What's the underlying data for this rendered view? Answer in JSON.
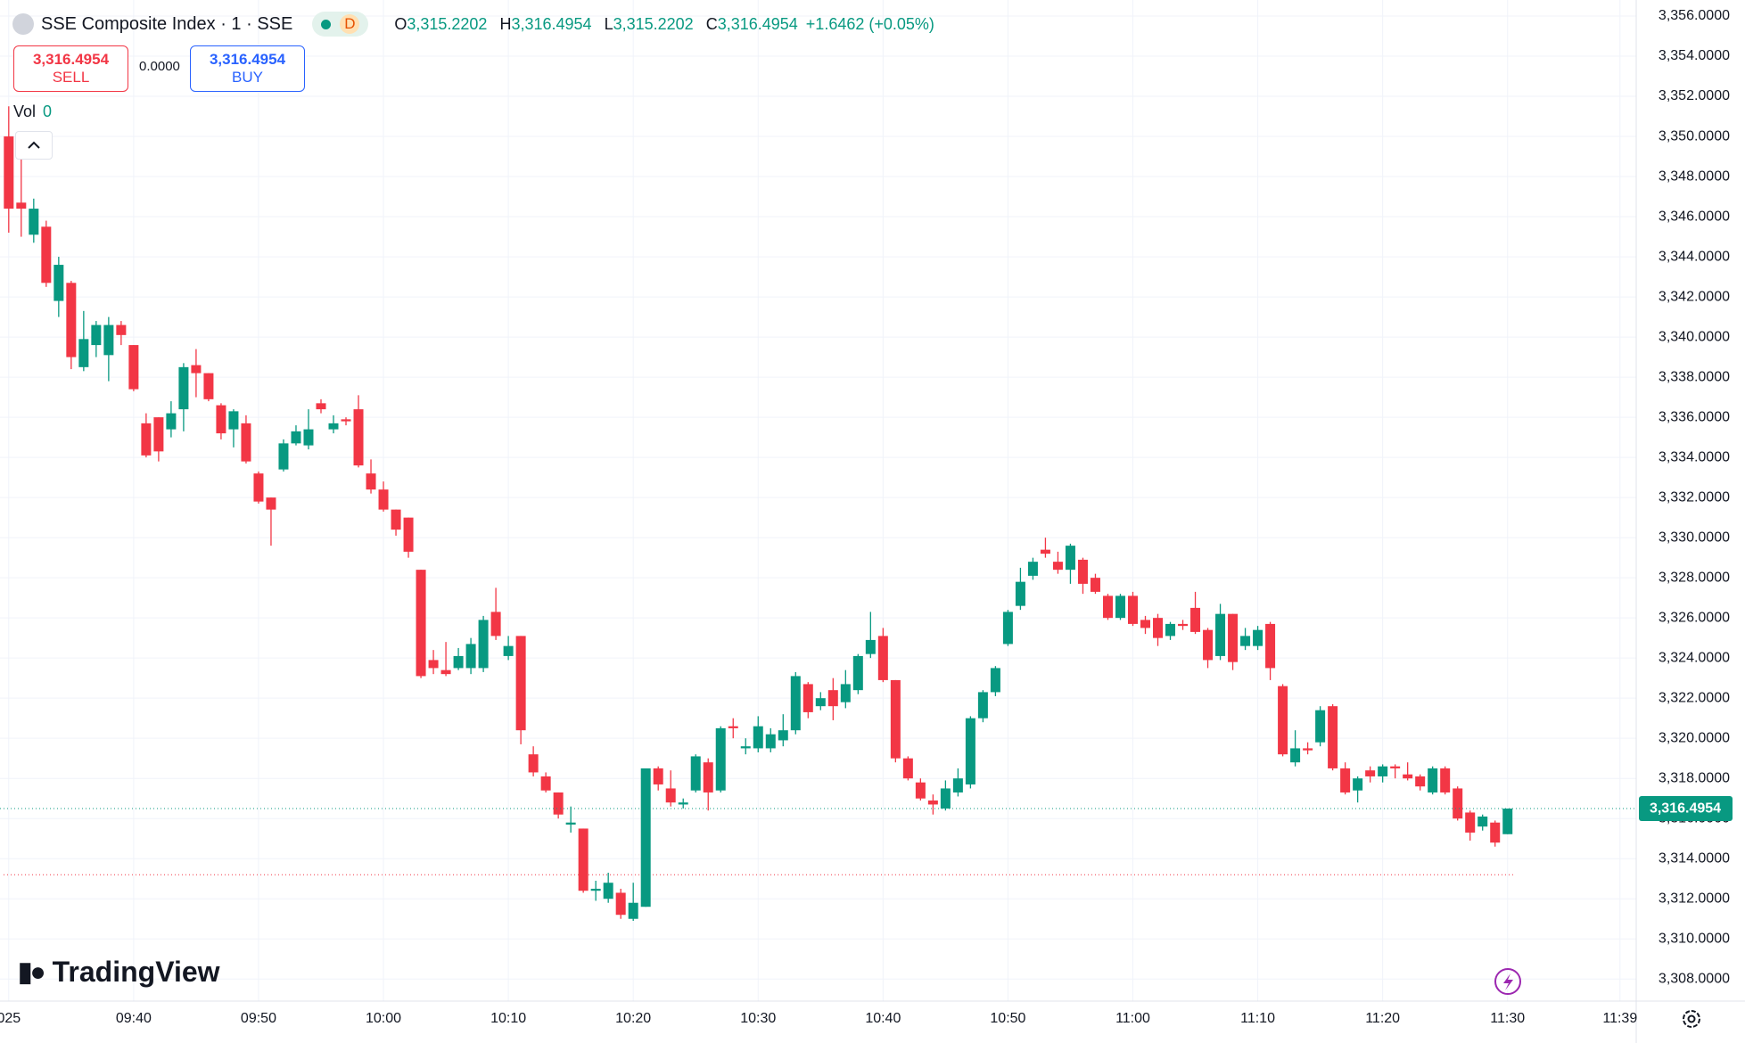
{
  "header": {
    "symbol": "SSE Composite Index · 1 · SSE",
    "badge": "D",
    "ohlc": [
      {
        "key": "O",
        "value": "3,315.2202"
      },
      {
        "key": "H",
        "value": "3,316.4954"
      },
      {
        "key": "L",
        "value": "3,315.2202"
      },
      {
        "key": "C",
        "value": "3,316.4954"
      }
    ],
    "change": "+1.6462 (+0.05%)",
    "sell_price": "3,316.4954",
    "sell": "SELL",
    "spread": "0.0000",
    "buy_price": "3,316.4954",
    "buy": "BUY",
    "volume_label": "Vol",
    "volume": "0",
    "brand": "TradingView"
  },
  "chart_data": {
    "type": "candlestick",
    "up_color": "#089981",
    "down_color": "#f23645",
    "grid": true,
    "open": [
      3350,
      3346.7,
      3345.1,
      3345.5,
      3341.8,
      3342.7,
      3338.5,
      3339.6,
      3339.1,
      3340.6,
      3339.6,
      3335.7,
      3336,
      3335.4,
      3336.4,
      3338.6,
      3338.2,
      3336.6,
      3335.4,
      3335.7,
      3333.2,
      3332,
      3333.4,
      3334.7,
      3334.6,
      3336.7,
      3335.4,
      3335.9,
      3336.4,
      3333.2,
      3332.4,
      3331.4,
      3331,
      3328.4,
      3323.9,
      3323.4,
      3323.5,
      3323.5,
      3323.5,
      3326.3,
      3324.1,
      3325.1,
      3319.2,
      3318.1,
      3317.3,
      3315.7,
      3315.5,
      3312.4,
      3312,
      3312.3,
      3311,
      3311.6,
      3318.5,
      3317.5,
      3316.7,
      3317.4,
      3318.8,
      3317.4,
      3320.6,
      3319.5,
      3319.5,
      3319.5,
      3319.9,
      3320.4,
      3322.7,
      3321.6,
      3322.4,
      3321.8,
      3322.4,
      3324.2,
      3325.1,
      3322.9,
      3319,
      3317.8,
      3316.9,
      3316.5,
      3317.3,
      3317.7,
      3321,
      3322.3,
      3324.7,
      3326.6,
      3328.1,
      3329.4,
      3328.8,
      3328.4,
      3328.9,
      3328,
      3327.1,
      3326,
      3327.1,
      3325.9,
      3326,
      3325.1,
      3325.7,
      3326.5,
      3325.4,
      3324.1,
      3326.2,
      3324.6,
      3324.6,
      3325.7,
      3322.6,
      3318.8,
      3319.5,
      3319.8,
      3321.6,
      3318.5,
      3317.4,
      3318.4,
      3318.1,
      3318.6,
      3318.2,
      3318.1,
      3317.3,
      3318.5,
      3317.5,
      3316.3,
      3315.6,
      3315.8,
      3315.2202
    ],
    "high": [
      3351.5,
      3349,
      3346.9,
      3345.8,
      3344,
      3342.8,
      3341.3,
      3340.8,
      3341,
      3340.8,
      3339.6,
      3336.2,
      3336,
      3336.8,
      3338.7,
      3339.4,
      3338.2,
      3336.7,
      3336.4,
      3336.1,
      3333.3,
      3332,
      3334.9,
      3335.6,
      3336.4,
      3336.9,
      3336.1,
      3336,
      3337.1,
      3333.9,
      3332.8,
      3331.4,
      3331,
      3328.4,
      3324.4,
      3324.8,
      3324.5,
      3325,
      3326.1,
      3327.5,
      3325.1,
      3325.1,
      3319.6,
      3318.3,
      3317.3,
      3316.6,
      3315.5,
      3312.9,
      3313.3,
      3312.5,
      3312.8,
      3318.5,
      3318.6,
      3318.4,
      3317,
      3319.2,
      3319,
      3320.6,
      3321,
      3320,
      3321.1,
      3320.5,
      3321.2,
      3323.3,
      3322.8,
      3322.3,
      3323,
      3323.4,
      3324.2,
      3326.3,
      3325.5,
      3322.9,
      3319.1,
      3318,
      3317.2,
      3317.9,
      3318.5,
      3321.1,
      3322.4,
      3323.6,
      3326.4,
      3328.5,
      3329,
      3330,
      3329.3,
      3329.7,
      3329,
      3328.2,
      3327.2,
      3327.2,
      3327.3,
      3326.1,
      3326.2,
      3325.8,
      3325.9,
      3327.3,
      3325.5,
      3326.7,
      3326.2,
      3325.5,
      3325.6,
      3325.8,
      3322.7,
      3320.4,
      3319.8,
      3321.6,
      3321.7,
      3318.8,
      3318.1,
      3318.6,
      3318.7,
      3318.7,
      3318.8,
      3318.2,
      3318.6,
      3318.6,
      3317.6,
      3316.4,
      3316.2,
      3315.9,
      3316.4954
    ],
    "low": [
      3345.2,
      3345,
      3344.7,
      3342.5,
      3341,
      3338.4,
      3338.3,
      3339,
      3337.8,
      3339.6,
      3337.3,
      3334,
      3333.8,
      3335,
      3335.3,
      3337,
      3336.8,
      3334.9,
      3334.5,
      3333.7,
      3331.7,
      3329.6,
      3333.3,
      3334.6,
      3334.4,
      3336.2,
      3335.2,
      3335.6,
      3333.5,
      3332.2,
      3331.3,
      3330.1,
      3329,
      3323,
      3323.2,
      3323.1,
      3323.4,
      3323.2,
      3323.3,
      3324.9,
      3323.9,
      3319.7,
      3318.1,
      3317.3,
      3316,
      3315.3,
      3312.3,
      3311.9,
      3311.8,
      3311,
      3310.9,
      3311.6,
      3317.4,
      3316.6,
      3316.5,
      3317.3,
      3316.4,
      3317.3,
      3320,
      3319.2,
      3319.3,
      3319.3,
      3319.6,
      3320.2,
      3321,
      3321.4,
      3320.9,
      3321.5,
      3322.2,
      3324,
      3322.8,
      3318.8,
      3317.9,
      3316.9,
      3316.2,
      3316.4,
      3317.1,
      3317.5,
      3320.8,
      3322.1,
      3324.6,
      3326.4,
      3327.9,
      3329,
      3328.2,
      3327.7,
      3327.2,
      3327.2,
      3325.9,
      3325.9,
      3325.6,
      3325.2,
      3324.6,
      3324.9,
      3325.4,
      3325.2,
      3323.5,
      3323.9,
      3323.4,
      3324.4,
      3324.4,
      3322.9,
      3319.1,
      3318.6,
      3319.2,
      3319.6,
      3318.4,
      3317.2,
      3316.8,
      3317.8,
      3317.8,
      3318,
      3317.9,
      3317.4,
      3317.2,
      3317.2,
      3315.9,
      3314.9,
      3315.4,
      3314.6,
      3315.2202
    ],
    "close": [
      3346.4,
      3346.4,
      3346.4,
      3342.7,
      3343.6,
      3339,
      3339.9,
      3340.6,
      3340.6,
      3340.1,
      3337.4,
      3334.1,
      3334.3,
      3336.2,
      3338.5,
      3338.2,
      3336.9,
      3335.2,
      3336.3,
      3333.8,
      3331.8,
      3331.4,
      3334.7,
      3335.3,
      3335.4,
      3336.4,
      3335.7,
      3335.8,
      3333.6,
      3332.4,
      3331.4,
      3330.4,
      3329.3,
      3323.1,
      3323.5,
      3323.2,
      3324.1,
      3324.7,
      3325.9,
      3325.1,
      3324.6,
      3320.4,
      3318.3,
      3317.4,
      3316.2,
      3315.8,
      3312.4,
      3312.5,
      3312.8,
      3311.2,
      3311.8,
      3318.5,
      3317.7,
      3316.8,
      3316.8,
      3319.1,
      3317.3,
      3320.5,
      3320.5,
      3319.6,
      3320.6,
      3320.2,
      3320.4,
      3323.1,
      3321.3,
      3322,
      3321.6,
      3322.7,
      3324.1,
      3324.9,
      3322.9,
      3319,
      3318,
      3317,
      3316.7,
      3317.5,
      3318,
      3321,
      3322.3,
      3323.5,
      3326.3,
      3327.8,
      3328.8,
      3329.2,
      3328.4,
      3329.6,
      3327.7,
      3327.3,
      3326,
      3327.1,
      3325.7,
      3325.5,
      3325,
      3325.7,
      3325.6,
      3325.3,
      3323.9,
      3326.2,
      3323.8,
      3325.1,
      3325.4,
      3323.5,
      3319.2,
      3319.5,
      3319.4,
      3321.4,
      3318.5,
      3317.3,
      3318,
      3318.1,
      3318.6,
      3318.5,
      3318,
      3317.6,
      3318.5,
      3317.3,
      3316,
      3315.3,
      3316.1,
      3314.8,
      3316.4954
    ],
    "xlim": [
      -0.7,
      130.3
    ],
    "xticks": [
      {
        "value": 0,
        "label": "025"
      },
      {
        "value": 10,
        "label": "09:40"
      },
      {
        "value": 20,
        "label": "09:50"
      },
      {
        "value": 30,
        "label": "10:00"
      },
      {
        "value": 40,
        "label": "10:10"
      },
      {
        "value": 50,
        "label": "10:20"
      },
      {
        "value": 60,
        "label": "10:30"
      },
      {
        "value": 70,
        "label": "10:40"
      },
      {
        "value": 80,
        "label": "10:50"
      },
      {
        "value": 90,
        "label": "11:00"
      },
      {
        "value": 100,
        "label": "11:10"
      },
      {
        "value": 110,
        "label": "11:20"
      },
      {
        "value": 120,
        "label": "11:30"
      },
      {
        "value": 129,
        "label": "11:39"
      }
    ],
    "ylim": [
      3306.9,
      3356.8
    ],
    "yticks": [
      {
        "value": 3308,
        "label": "3,308.0000"
      },
      {
        "value": 3310,
        "label": "3,310.0000"
      },
      {
        "value": 3312,
        "label": "3,312.0000"
      },
      {
        "value": 3314,
        "label": "3,314.0000"
      },
      {
        "value": 3316,
        "label": "3,316.0000"
      },
      {
        "value": 3318,
        "label": "3,318.0000"
      },
      {
        "value": 3320,
        "label": "3,320.0000"
      },
      {
        "value": 3322,
        "label": "3,322.0000"
      },
      {
        "value": 3324,
        "label": "3,324.0000"
      },
      {
        "value": 3326,
        "label": "3,326.0000"
      },
      {
        "value": 3328,
        "label": "3,328.0000"
      },
      {
        "value": 3330,
        "label": "3,330.0000"
      },
      {
        "value": 3332,
        "label": "3,332.0000"
      },
      {
        "value": 3334,
        "label": "3,334.0000"
      },
      {
        "value": 3336,
        "label": "3,336.0000"
      },
      {
        "value": 3338,
        "label": "3,338.0000"
      },
      {
        "value": 3340,
        "label": "3,340.0000"
      },
      {
        "value": 3342,
        "label": "3,342.0000"
      },
      {
        "value": 3344,
        "label": "3,344.0000"
      },
      {
        "value": 3346,
        "label": "3,346.0000"
      },
      {
        "value": 3348,
        "label": "3,348.0000"
      },
      {
        "value": 3350,
        "label": "3,350.0000"
      },
      {
        "value": 3352,
        "label": "3,352.0000"
      },
      {
        "value": 3354,
        "label": "3,354.0000"
      },
      {
        "value": 3356,
        "label": "3,356.0000"
      }
    ],
    "last_price": {
      "value": 3316.4954,
      "label": "3,316.4954"
    },
    "reference_line": 3313.2
  }
}
